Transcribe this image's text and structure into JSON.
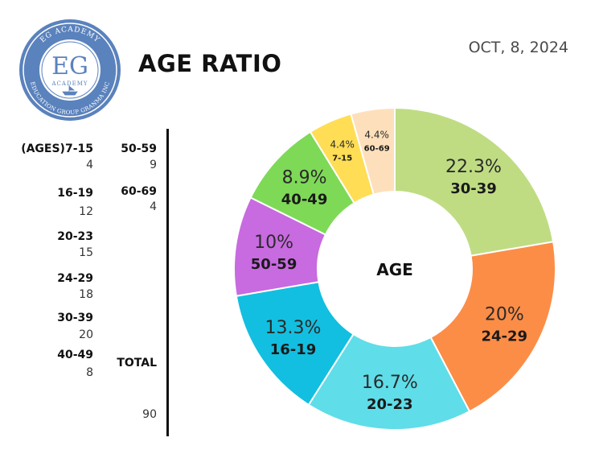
{
  "header": {
    "title": "AGE RATIO",
    "date": "OCT, 8, 2024"
  },
  "logo": {
    "initials": "EG",
    "sub": "ACADEMY",
    "ring_top": "EG ACADEMY",
    "ring_bottom": "EDUCATION GROUP GRANMA INC"
  },
  "table": {
    "col1": [
      {
        "label": "(AGES)7-15",
        "value": "4"
      },
      {
        "label": "16-19",
        "value": "12"
      },
      {
        "label": "20-23",
        "value": "15"
      },
      {
        "label": "24-29",
        "value": "18"
      },
      {
        "label": "30-39",
        "value": "20"
      },
      {
        "label": "40-49",
        "value": "8"
      }
    ],
    "col2": [
      {
        "label": "50-59",
        "value": "9"
      },
      {
        "label": "60-69",
        "value": "4"
      }
    ],
    "total_label": "TOTAL",
    "total_value": "90"
  },
  "chart_data": {
    "type": "pie",
    "center_label": "AGE",
    "slices": [
      {
        "label": "30-39",
        "pct_text": "22.3%",
        "value": 22.3,
        "color": "#bfdc83"
      },
      {
        "label": "24-29",
        "pct_text": "20%",
        "value": 20,
        "color": "#fc8d47"
      },
      {
        "label": "20-23",
        "pct_text": "16.7%",
        "value": 16.7,
        "color": "#5fdde8"
      },
      {
        "label": "16-19",
        "pct_text": "13.3%",
        "value": 13.3,
        "color": "#12bfe0"
      },
      {
        "label": "50-59",
        "pct_text": "10%",
        "value": 10,
        "color": "#c86ae0"
      },
      {
        "label": "40-49",
        "pct_text": "8.9%",
        "value": 8.9,
        "color": "#7ed957"
      },
      {
        "label": "7-15",
        "pct_text": "4.4%",
        "value": 4.4,
        "color": "#ffdd55"
      },
      {
        "label": "60-69",
        "pct_text": "4.4%",
        "value": 4.4,
        "color": "#fde0bb"
      }
    ]
  }
}
